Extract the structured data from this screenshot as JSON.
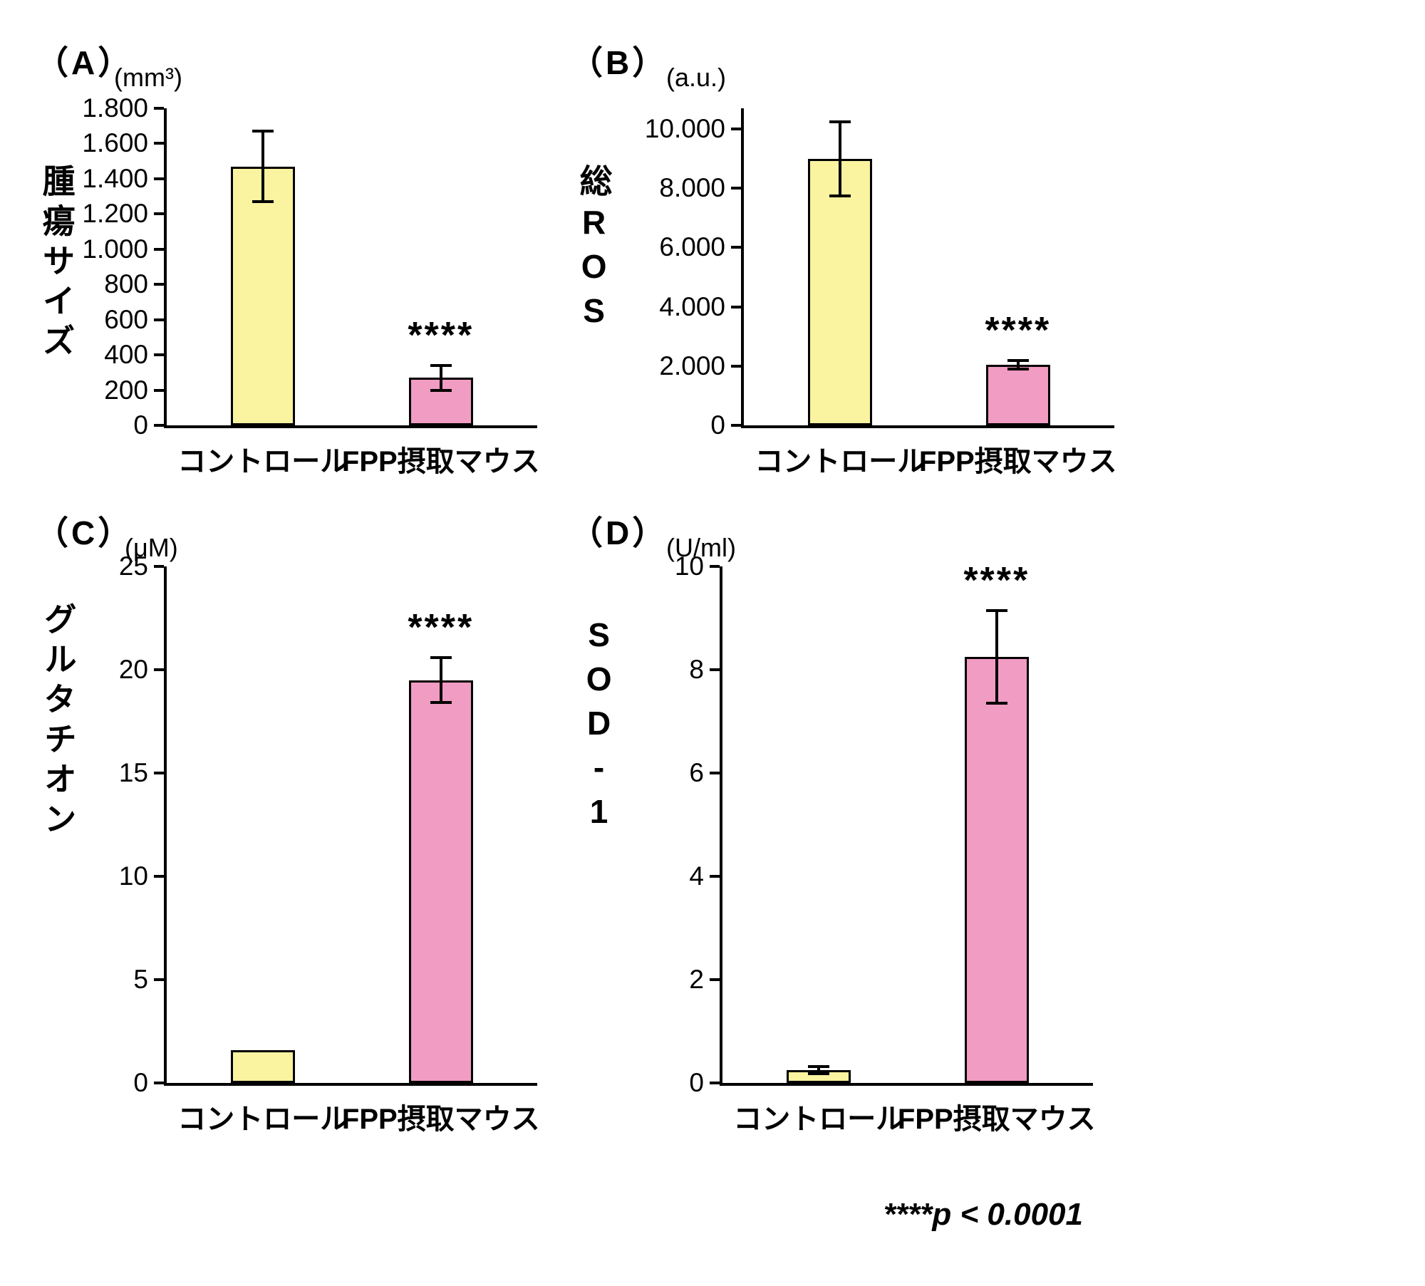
{
  "figure": {
    "footnote": "****p < 0.0001"
  },
  "chart_data": [
    {
      "type": "bar",
      "panel_label": "（A）",
      "unit": "(mm³)",
      "ylabel": "腫瘍サイズ",
      "categories": [
        "コントロール",
        "FPP摂取マウス"
      ],
      "values": [
        1470,
        270
      ],
      "errors": [
        200,
        70
      ],
      "significance": [
        "",
        "****"
      ],
      "bar_colors": [
        "#FAF3A0",
        "#F19CC2"
      ],
      "ylim": [
        0,
        1800
      ],
      "axis_top": 1800,
      "ytick_values": [
        0,
        200,
        400,
        600,
        800,
        1000,
        1200,
        1400,
        1600,
        1800
      ],
      "ytick_labels": [
        "0",
        "200",
        "400",
        "600",
        "800",
        "1.000",
        "1.200",
        "1.400",
        "1.600",
        "1.800"
      ]
    },
    {
      "type": "bar",
      "panel_label": "（B）",
      "unit": "(a.u.)",
      "ylabel": "総ROS",
      "categories": [
        "コントロール",
        "FPP摂取マウス"
      ],
      "values": [
        9000,
        2050
      ],
      "errors": [
        1250,
        150
      ],
      "significance": [
        "",
        "****"
      ],
      "bar_colors": [
        "#FAF3A0",
        "#F19CC2"
      ],
      "ylim": [
        0,
        10000
      ],
      "axis_top": 10700,
      "ytick_values": [
        0,
        2000,
        4000,
        6000,
        8000,
        10000
      ],
      "ytick_labels": [
        "0",
        "2.000",
        "4.000",
        "6.000",
        "8.000",
        "10.000"
      ]
    },
    {
      "type": "bar",
      "panel_label": "（C）",
      "unit": "(μM)",
      "ylabel": "グルタチオン",
      "categories": [
        "コントロール",
        "FPP摂取マウス"
      ],
      "values": [
        1.6,
        19.5
      ],
      "errors": [
        0,
        1.1
      ],
      "significance": [
        "",
        "****"
      ],
      "bar_colors": [
        "#FAF3A0",
        "#F19CC2"
      ],
      "ylim": [
        0,
        25
      ],
      "axis_top": 25,
      "ytick_values": [
        0,
        5,
        10,
        15,
        20,
        25
      ],
      "ytick_labels": [
        "0",
        "5",
        "10",
        "15",
        "20",
        "25"
      ]
    },
    {
      "type": "bar",
      "panel_label": "（D）",
      "unit": "(U/ml)",
      "ylabel": "SOD-1",
      "categories": [
        "コントロール",
        "FPP摂取マウス"
      ],
      "values": [
        0.25,
        8.25
      ],
      "errors": [
        0.07,
        0.9
      ],
      "significance": [
        "",
        "****"
      ],
      "bar_colors": [
        "#FAF3A0",
        "#F19CC2"
      ],
      "ylim": [
        0,
        10
      ],
      "axis_top": 10,
      "ytick_values": [
        0,
        2,
        4,
        6,
        8,
        10
      ],
      "ytick_labels": [
        "0",
        "2",
        "4",
        "6",
        "8",
        "10"
      ]
    }
  ]
}
